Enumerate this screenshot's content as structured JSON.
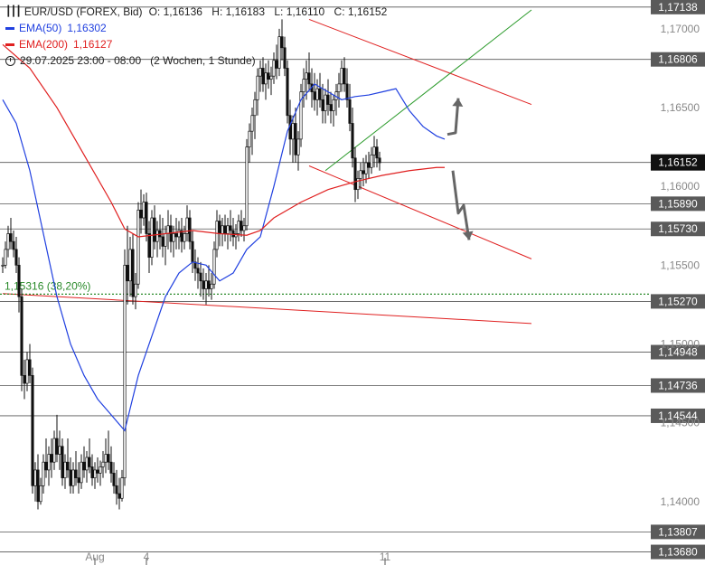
{
  "legend": {
    "instrument": "EUR/USD (FOREX, Bid)",
    "ohlc": {
      "open": "O: 1,16136",
      "high": "H: 1,16183",
      "low": "L: 1,16110",
      "close": "C: 1,16152"
    },
    "ema50": {
      "name": "EMA(50)",
      "value": "1,16302",
      "color": "#2040e0"
    },
    "ema200": {
      "name": "EMA(200)",
      "value": "1,16127",
      "color": "#e02020"
    },
    "period": "29.07.2025 23:00 - 08:00",
    "span": "(2 Wochen, 1 Stunde)"
  },
  "chart_data": {
    "type": "candlestick",
    "ylim": [
      1.1362,
      1.1716
    ],
    "x_tick_labels": [
      {
        "label": "Aug",
        "index": 34
      },
      {
        "label": "4",
        "index": 53
      },
      {
        "label": "11",
        "index": 141
      }
    ],
    "y_ticks": [
      "1,17000",
      "1,16500",
      "1,16000",
      "1,15500",
      "1,15000",
      "1,14500",
      "1,14000"
    ],
    "y_tick_values": [
      1.17,
      1.165,
      1.16,
      1.155,
      1.15,
      1.145,
      1.14
    ],
    "horizontal_levels": [
      {
        "label": "1,17138",
        "value": 1.17138
      },
      {
        "label": "1,16806",
        "value": 1.16806
      },
      {
        "label": "1,15890",
        "value": 1.1589
      },
      {
        "label": "1,15730",
        "value": 1.1573
      },
      {
        "label": "1,15270",
        "value": 1.1527
      },
      {
        "label": "1,14948",
        "value": 1.14948
      },
      {
        "label": "1,14736",
        "value": 1.14736
      },
      {
        "label": "1,14544",
        "value": 1.14544
      },
      {
        "label": "1,13807",
        "value": 1.13807
      },
      {
        "label": "1,13680",
        "value": 1.1368
      }
    ],
    "current_price": {
      "label": "1,16152",
      "value": 1.16152
    },
    "fib_level": {
      "label": "1,15316 (38,20%)",
      "value": 1.15316,
      "color": "#2a8a2a"
    },
    "trendlines": [
      {
        "color": "#e02020",
        "from": [
          0,
          1.1532
        ],
        "to": [
          195,
          1.1513
        ]
      },
      {
        "color": "#e02020",
        "from": [
          113,
          1.1706
        ],
        "to": [
          195,
          1.1652
        ]
      },
      {
        "color": "#e02020",
        "from": [
          113,
          1.1613
        ],
        "to": [
          195,
          1.1554
        ]
      },
      {
        "color": "#2a9a2a",
        "from": [
          119,
          1.161
        ],
        "to": [
          195,
          1.1712
        ]
      }
    ],
    "arrows": [
      {
        "color": "#666666",
        "points": [
          [
            164,
            1.1633
          ],
          [
            167,
            1.1634
          ],
          [
            168,
            1.1656
          ]
        ]
      },
      {
        "color": "#666666",
        "points": [
          [
            166,
            1.161
          ],
          [
            168,
            1.1583
          ],
          [
            170,
            1.1588
          ],
          [
            172,
            1.1566
          ]
        ]
      }
    ],
    "series": [
      {
        "name": "EMA(50)",
        "color": "#2040e0",
        "points": [
          [
            0,
            1.1655
          ],
          [
            5,
            1.164
          ],
          [
            10,
            1.161
          ],
          [
            15,
            1.157
          ],
          [
            20,
            1.153
          ],
          [
            25,
            1.15
          ],
          [
            30,
            1.148
          ],
          [
            35,
            1.1465
          ],
          [
            40,
            1.1455
          ],
          [
            45,
            1.1445
          ],
          [
            50,
            1.148
          ],
          [
            55,
            1.1505
          ],
          [
            60,
            1.153
          ],
          [
            65,
            1.1545
          ],
          [
            70,
            1.1552
          ],
          [
            75,
            1.155
          ],
          [
            80,
            1.154
          ],
          [
            85,
            1.1545
          ],
          [
            90,
            1.156
          ],
          [
            95,
            1.1568
          ],
          [
            100,
            1.16
          ],
          [
            105,
            1.1635
          ],
          [
            110,
            1.1655
          ],
          [
            115,
            1.1665
          ],
          [
            120,
            1.166
          ],
          [
            125,
            1.1655
          ],
          [
            130,
            1.1657
          ],
          [
            135,
            1.1658
          ],
          [
            140,
            1.166
          ],
          [
            145,
            1.1662
          ],
          [
            150,
            1.1648
          ],
          [
            155,
            1.1638
          ],
          [
            160,
            1.1632
          ],
          [
            163,
            1.163
          ]
        ]
      },
      {
        "name": "EMA(200)",
        "color": "#e02020",
        "points": [
          [
            0,
            1.169
          ],
          [
            10,
            1.1675
          ],
          [
            20,
            1.165
          ],
          [
            30,
            1.162
          ],
          [
            40,
            1.159
          ],
          [
            45,
            1.1573
          ],
          [
            50,
            1.1568
          ],
          [
            60,
            1.157
          ],
          [
            70,
            1.1572
          ],
          [
            80,
            1.157
          ],
          [
            90,
            1.1569
          ],
          [
            95,
            1.1572
          ],
          [
            100,
            1.158
          ],
          [
            110,
            1.159
          ],
          [
            120,
            1.1598
          ],
          [
            130,
            1.1603
          ],
          [
            140,
            1.1607
          ],
          [
            150,
            1.161
          ],
          [
            160,
            1.1612
          ],
          [
            163,
            1.1612
          ]
        ]
      }
    ],
    "candles": [
      [
        1.155,
        1.1555,
        1.1545,
        1.155
      ],
      [
        1.155,
        1.1565,
        1.1548,
        1.156
      ],
      [
        1.156,
        1.1575,
        1.1555,
        1.157
      ],
      [
        1.157,
        1.158,
        1.156,
        1.1565
      ],
      [
        1.1565,
        1.1572,
        1.1555,
        1.156
      ],
      [
        1.156,
        1.1568,
        1.1545,
        1.155
      ],
      [
        1.155,
        1.1555,
        1.152,
        1.153
      ],
      [
        1.153,
        1.1535,
        1.147,
        1.148
      ],
      [
        1.148,
        1.149,
        1.1465,
        1.1475
      ],
      [
        1.1475,
        1.1495,
        1.147,
        1.149
      ],
      [
        1.149,
        1.15,
        1.1475,
        1.148
      ],
      [
        1.148,
        1.1485,
        1.1405,
        1.141
      ],
      [
        1.141,
        1.1425,
        1.14,
        1.142
      ],
      [
        1.142,
        1.143,
        1.1395,
        1.14
      ],
      [
        1.14,
        1.1415,
        1.1398,
        1.141
      ],
      [
        1.141,
        1.143,
        1.1405,
        1.1425
      ],
      [
        1.1425,
        1.144,
        1.1415,
        1.142
      ],
      [
        1.142,
        1.1435,
        1.141,
        1.143
      ],
      [
        1.143,
        1.144,
        1.1415,
        1.1425
      ],
      [
        1.1425,
        1.1445,
        1.142,
        1.144
      ],
      [
        1.144,
        1.1455,
        1.1425,
        1.143
      ],
      [
        1.143,
        1.1445,
        1.142,
        1.1435
      ],
      [
        1.1435,
        1.144,
        1.141,
        1.1415
      ],
      [
        1.1415,
        1.143,
        1.1408,
        1.1425
      ],
      [
        1.1425,
        1.144,
        1.1415,
        1.142
      ],
      [
        1.142,
        1.1428,
        1.1405,
        1.141
      ],
      [
        1.141,
        1.1425,
        1.1405,
        1.142
      ],
      [
        1.142,
        1.1432,
        1.141,
        1.1415
      ],
      [
        1.1415,
        1.1425,
        1.1405,
        1.1412
      ],
      [
        1.1412,
        1.143,
        1.1408,
        1.1425
      ],
      [
        1.1425,
        1.1435,
        1.1415,
        1.142
      ],
      [
        1.142,
        1.1432,
        1.1412,
        1.1428
      ],
      [
        1.1428,
        1.144,
        1.1418,
        1.1422
      ],
      [
        1.1422,
        1.143,
        1.141,
        1.1415
      ],
      [
        1.1415,
        1.1425,
        1.1408,
        1.142
      ],
      [
        1.142,
        1.1428,
        1.1412,
        1.1418
      ],
      [
        1.1418,
        1.1426,
        1.141,
        1.1422
      ],
      [
        1.1422,
        1.1432,
        1.1415,
        1.1425
      ],
      [
        1.1425,
        1.144,
        1.1418,
        1.143
      ],
      [
        1.143,
        1.1445,
        1.142,
        1.1425
      ],
      [
        1.1425,
        1.1435,
        1.1412,
        1.1418
      ],
      [
        1.1418,
        1.1425,
        1.1405,
        1.141
      ],
      [
        1.141,
        1.142,
        1.1398,
        1.1405
      ],
      [
        1.1405,
        1.1415,
        1.1395,
        1.1402
      ],
      [
        1.1402,
        1.142,
        1.14,
        1.1415
      ],
      [
        1.1415,
        1.156,
        1.141,
        1.155
      ],
      [
        1.155,
        1.1575,
        1.1525,
        1.154
      ],
      [
        1.154,
        1.1568,
        1.153,
        1.156
      ],
      [
        1.156,
        1.157,
        1.1525,
        1.153
      ],
      [
        1.153,
        1.1545,
        1.1522,
        1.1538
      ],
      [
        1.1538,
        1.159,
        1.1535,
        1.1585
      ],
      [
        1.1585,
        1.1598,
        1.157,
        1.158
      ],
      [
        1.158,
        1.1595,
        1.1575,
        1.159
      ],
      [
        1.159,
        1.1596,
        1.1565,
        1.157
      ],
      [
        1.157,
        1.1578,
        1.1545,
        1.1555
      ],
      [
        1.1555,
        1.1585,
        1.155,
        1.158
      ],
      [
        1.158,
        1.1588,
        1.156,
        1.1565
      ],
      [
        1.1565,
        1.1578,
        1.1555,
        1.1572
      ],
      [
        1.1572,
        1.1582,
        1.156,
        1.1568
      ],
      [
        1.1568,
        1.158,
        1.1555,
        1.1562
      ],
      [
        1.1562,
        1.1575,
        1.155,
        1.157
      ],
      [
        1.157,
        1.1585,
        1.156,
        1.1575
      ],
      [
        1.1575,
        1.1582,
        1.1558,
        1.1565
      ],
      [
        1.1565,
        1.1575,
        1.1555,
        1.157
      ],
      [
        1.157,
        1.158,
        1.156,
        1.1568
      ],
      [
        1.1568,
        1.1578,
        1.156,
        1.1572
      ],
      [
        1.1572,
        1.158,
        1.1558,
        1.1565
      ],
      [
        1.1565,
        1.1575,
        1.156,
        1.157
      ],
      [
        1.157,
        1.1588,
        1.1565,
        1.158
      ],
      [
        1.158,
        1.1585,
        1.156,
        1.1565
      ],
      [
        1.1565,
        1.1572,
        1.1545,
        1.1552
      ],
      [
        1.1552,
        1.156,
        1.154,
        1.1548
      ],
      [
        1.1548,
        1.1555,
        1.1535,
        1.1545
      ],
      [
        1.1545,
        1.1552,
        1.153,
        1.154
      ],
      [
        1.154,
        1.1548,
        1.1528,
        1.1535
      ],
      [
        1.1535,
        1.1545,
        1.1525,
        1.154
      ],
      [
        1.154,
        1.155,
        1.153,
        1.1535
      ],
      [
        1.1535,
        1.1545,
        1.1528,
        1.1538
      ],
      [
        1.1538,
        1.1565,
        1.1535,
        1.156
      ],
      [
        1.156,
        1.1585,
        1.1555,
        1.1578
      ],
      [
        1.1578,
        1.1582,
        1.1562,
        1.157
      ],
      [
        1.157,
        1.158,
        1.1562,
        1.1575
      ],
      [
        1.1575,
        1.1582,
        1.1565,
        1.157
      ],
      [
        1.157,
        1.158,
        1.156,
        1.1575
      ],
      [
        1.1575,
        1.1585,
        1.1565,
        1.1572
      ],
      [
        1.1572,
        1.158,
        1.1562,
        1.1568
      ],
      [
        1.1568,
        1.1576,
        1.156,
        1.157
      ],
      [
        1.157,
        1.1582,
        1.1565,
        1.1578
      ],
      [
        1.1578,
        1.1585,
        1.1568,
        1.1572
      ],
      [
        1.1572,
        1.158,
        1.1565,
        1.1575
      ],
      [
        1.1575,
        1.163,
        1.1572,
        1.1625
      ],
      [
        1.1625,
        1.164,
        1.1615,
        1.1635
      ],
      [
        1.1635,
        1.165,
        1.162,
        1.1645
      ],
      [
        1.1645,
        1.166,
        1.163,
        1.1655
      ],
      [
        1.1655,
        1.1675,
        1.1645,
        1.167
      ],
      [
        1.167,
        1.168,
        1.166,
        1.1675
      ],
      [
        1.1675,
        1.1682,
        1.166,
        1.1665
      ],
      [
        1.1665,
        1.1678,
        1.1655,
        1.1672
      ],
      [
        1.1672,
        1.168,
        1.1662,
        1.1668
      ],
      [
        1.1668,
        1.1676,
        1.1658,
        1.167
      ],
      [
        1.167,
        1.1685,
        1.1665,
        1.168
      ],
      [
        1.168,
        1.169,
        1.1668,
        1.1675
      ],
      [
        1.1675,
        1.17,
        1.167,
        1.1695
      ],
      [
        1.1695,
        1.1706,
        1.168,
        1.1688
      ],
      [
        1.1688,
        1.1695,
        1.167,
        1.1675
      ],
      [
        1.1675,
        1.168,
        1.164,
        1.1645
      ],
      [
        1.1645,
        1.1655,
        1.162,
        1.163
      ],
      [
        1.163,
        1.1645,
        1.1615,
        1.164
      ],
      [
        1.164,
        1.165,
        1.1615,
        1.162
      ],
      [
        1.162,
        1.1635,
        1.161,
        1.163
      ],
      [
        1.163,
        1.1665,
        1.1625,
        1.166
      ],
      [
        1.166,
        1.1675,
        1.165,
        1.1668
      ],
      [
        1.1668,
        1.168,
        1.1655,
        1.1672
      ],
      [
        1.1672,
        1.1685,
        1.166,
        1.1665
      ],
      [
        1.1665,
        1.1675,
        1.165,
        1.166
      ],
      [
        1.166,
        1.1672,
        1.1648,
        1.1655
      ],
      [
        1.1655,
        1.1668,
        1.1645,
        1.1662
      ],
      [
        1.1662,
        1.1672,
        1.165,
        1.1655
      ],
      [
        1.1655,
        1.1665,
        1.164,
        1.1648
      ],
      [
        1.1648,
        1.1662,
        1.164,
        1.1658
      ],
      [
        1.1658,
        1.1668,
        1.1645,
        1.1652
      ],
      [
        1.1652,
        1.166,
        1.164,
        1.1648
      ],
      [
        1.1648,
        1.1658,
        1.1638,
        1.1655
      ],
      [
        1.1655,
        1.1665,
        1.1645,
        1.166
      ],
      [
        1.166,
        1.1672,
        1.165,
        1.1665
      ],
      [
        1.1665,
        1.168,
        1.166,
        1.1675
      ],
      [
        1.1675,
        1.1682,
        1.166,
        1.1665
      ],
      [
        1.1665,
        1.1675,
        1.165,
        1.1655
      ],
      [
        1.1655,
        1.1665,
        1.1635,
        1.164
      ],
      [
        1.164,
        1.165,
        1.1612,
        1.1618
      ],
      [
        1.1618,
        1.1625,
        1.159,
        1.1598
      ],
      [
        1.1598,
        1.161,
        1.1592,
        1.1605
      ],
      [
        1.1605,
        1.1615,
        1.1598,
        1.161
      ],
      [
        1.161,
        1.1618,
        1.16,
        1.1608
      ],
      [
        1.1608,
        1.162,
        1.1602,
        1.1615
      ],
      [
        1.1615,
        1.1622,
        1.1605,
        1.1612
      ],
      [
        1.1612,
        1.1625,
        1.1608,
        1.162
      ],
      [
        1.162,
        1.1632,
        1.1612,
        1.1625
      ],
      [
        1.1625,
        1.163,
        1.1612,
        1.1618
      ],
      [
        1.1618,
        1.1622,
        1.161,
        1.1615
      ]
    ]
  }
}
